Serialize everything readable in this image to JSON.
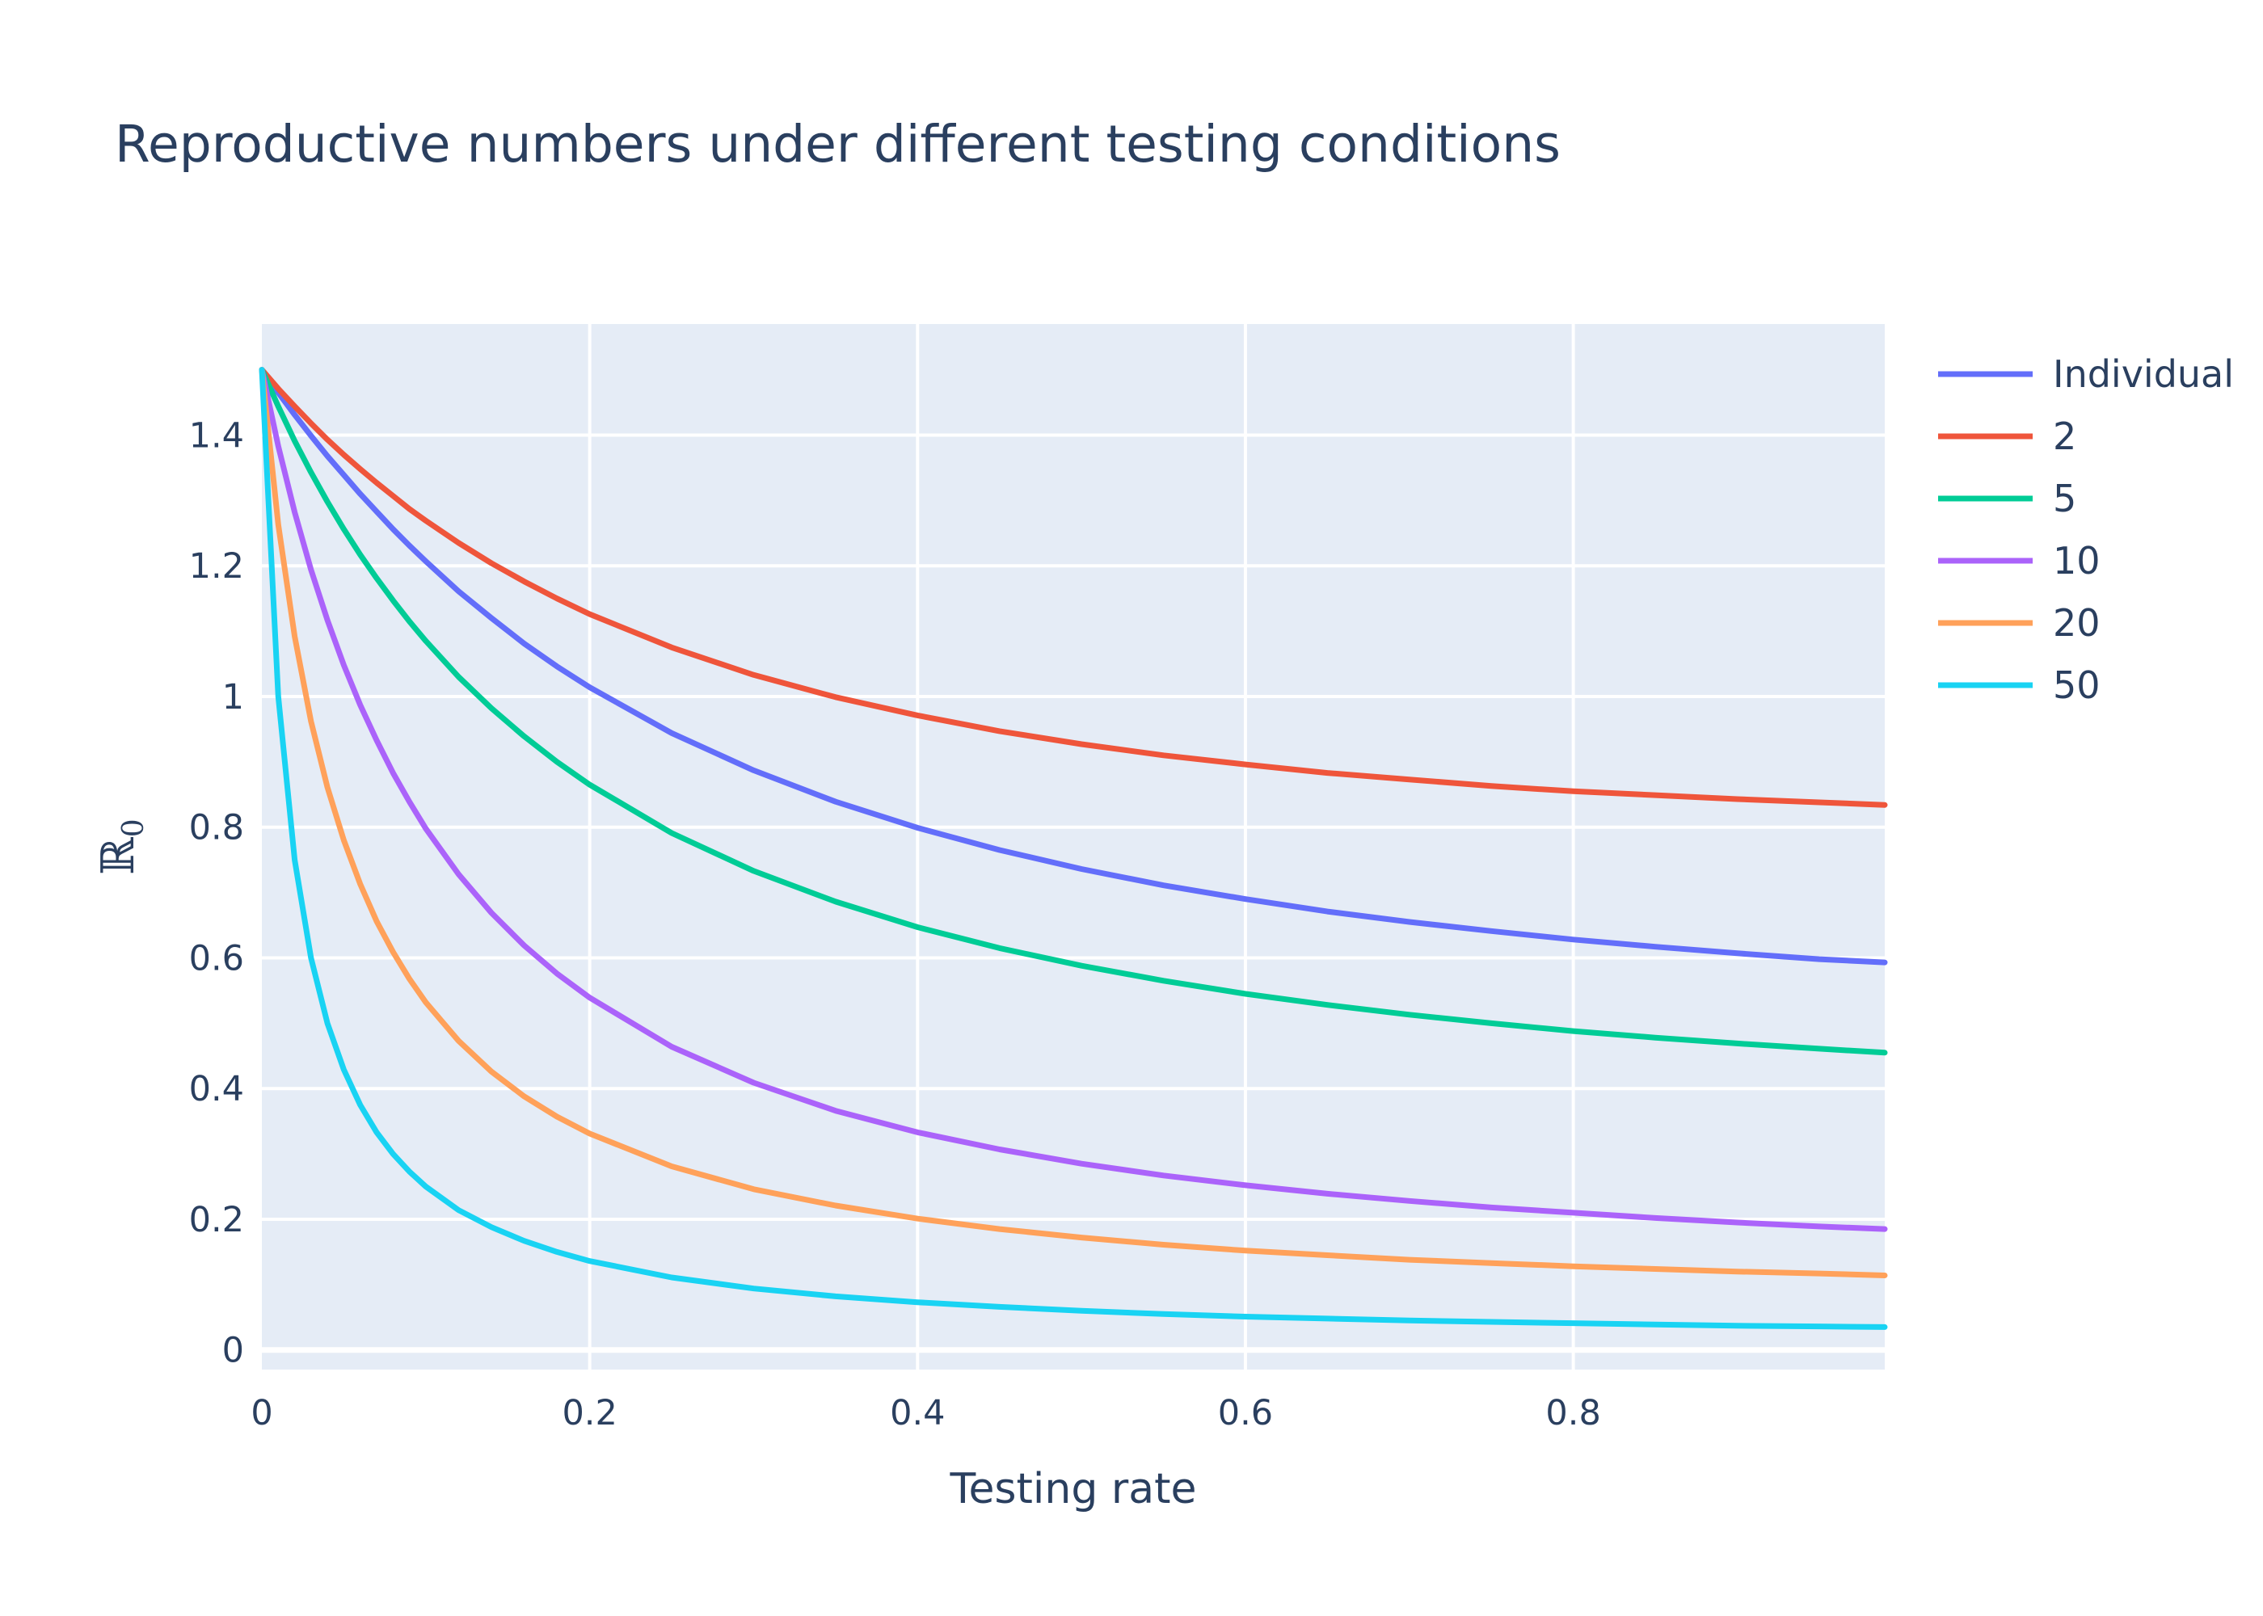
{
  "chart_data": {
    "type": "line",
    "title": "Reproductive numbers under different testing conditions",
    "xlabel": "Testing rate",
    "ylabel": "ℝ",
    "ylabel_subscript": "0",
    "xlim": [
      0,
      0.99
    ],
    "ylim": [
      -0.03,
      1.57
    ],
    "grid": true,
    "legend_position": "top-right",
    "background_color": "#e5ecf6",
    "x_ticks": [
      0,
      0.2,
      0.4,
      0.6,
      0.8
    ],
    "x_tick_labels": [
      "0",
      "0.2",
      "0.4",
      "0.6",
      "0.8"
    ],
    "y_ticks": [
      0,
      0.2,
      0.4,
      0.6,
      0.8,
      1,
      1.2,
      1.4
    ],
    "y_tick_labels": [
      "0",
      "0.2",
      "0.4",
      "0.6",
      "0.8",
      "1",
      "1.2",
      "1.4"
    ],
    "x": [
      0,
      0.01,
      0.02,
      0.03,
      0.04,
      0.05,
      0.06,
      0.07,
      0.08,
      0.09,
      0.1,
      0.12,
      0.14,
      0.16,
      0.18,
      0.2,
      0.25,
      0.3,
      0.35,
      0.4,
      0.45,
      0.5,
      0.55,
      0.6,
      0.65,
      0.7,
      0.75,
      0.8,
      0.85,
      0.9,
      0.95,
      0.99
    ],
    "series": [
      {
        "name": "Individual",
        "color": "#636efa",
        "values": [
          1.5,
          1.465,
          1.431,
          1.399,
          1.368,
          1.339,
          1.31,
          1.283,
          1.256,
          1.231,
          1.207,
          1.161,
          1.12,
          1.081,
          1.046,
          1.014,
          0.944,
          0.887,
          0.839,
          0.799,
          0.765,
          0.736,
          0.711,
          0.69,
          0.671,
          0.655,
          0.641,
          0.628,
          0.617,
          0.607,
          0.598,
          0.593
        ]
      },
      {
        "name": "2",
        "color": "#ef553b",
        "values": [
          1.5,
          1.471,
          1.444,
          1.418,
          1.393,
          1.37,
          1.348,
          1.327,
          1.307,
          1.287,
          1.269,
          1.235,
          1.204,
          1.176,
          1.15,
          1.126,
          1.075,
          1.033,
          0.999,
          0.971,
          0.947,
          0.927,
          0.91,
          0.896,
          0.883,
          0.873,
          0.863,
          0.855,
          0.849,
          0.843,
          0.838,
          0.834
        ]
      },
      {
        "name": "5",
        "color": "#00cc96",
        "values": [
          1.5,
          1.444,
          1.391,
          1.343,
          1.298,
          1.256,
          1.217,
          1.181,
          1.147,
          1.115,
          1.085,
          1.03,
          0.982,
          0.939,
          0.9,
          0.865,
          0.791,
          0.733,
          0.686,
          0.647,
          0.615,
          0.588,
          0.565,
          0.545,
          0.528,
          0.513,
          0.5,
          0.488,
          0.478,
          0.469,
          0.461,
          0.455
        ]
      },
      {
        "name": "10",
        "color": "#ab63fa",
        "values": [
          1.5,
          1.383,
          1.282,
          1.194,
          1.117,
          1.048,
          0.987,
          0.933,
          0.883,
          0.839,
          0.798,
          0.728,
          0.669,
          0.619,
          0.576,
          0.539,
          0.464,
          0.409,
          0.366,
          0.333,
          0.307,
          0.285,
          0.267,
          0.252,
          0.239,
          0.228,
          0.218,
          0.21,
          0.202,
          0.195,
          0.189,
          0.185
        ]
      },
      {
        "name": "20",
        "color": "#ffa15a",
        "values": [
          1.5,
          1.263,
          1.092,
          0.962,
          0.861,
          0.78,
          0.713,
          0.656,
          0.609,
          0.568,
          0.532,
          0.473,
          0.426,
          0.388,
          0.357,
          0.331,
          0.281,
          0.246,
          0.221,
          0.201,
          0.185,
          0.172,
          0.161,
          0.152,
          0.145,
          0.138,
          0.133,
          0.128,
          0.124,
          0.12,
          0.117,
          0.114
        ]
      },
      {
        "name": "50",
        "color": "#19d3f3",
        "values": [
          1.5,
          1.0,
          0.75,
          0.6,
          0.5,
          0.429,
          0.375,
          0.333,
          0.3,
          0.273,
          0.25,
          0.214,
          0.188,
          0.167,
          0.15,
          0.136,
          0.111,
          0.094,
          0.082,
          0.073,
          0.066,
          0.06,
          0.055,
          0.051,
          0.048,
          0.045,
          0.043,
          0.041,
          0.039,
          0.037,
          0.036,
          0.035
        ]
      }
    ]
  }
}
